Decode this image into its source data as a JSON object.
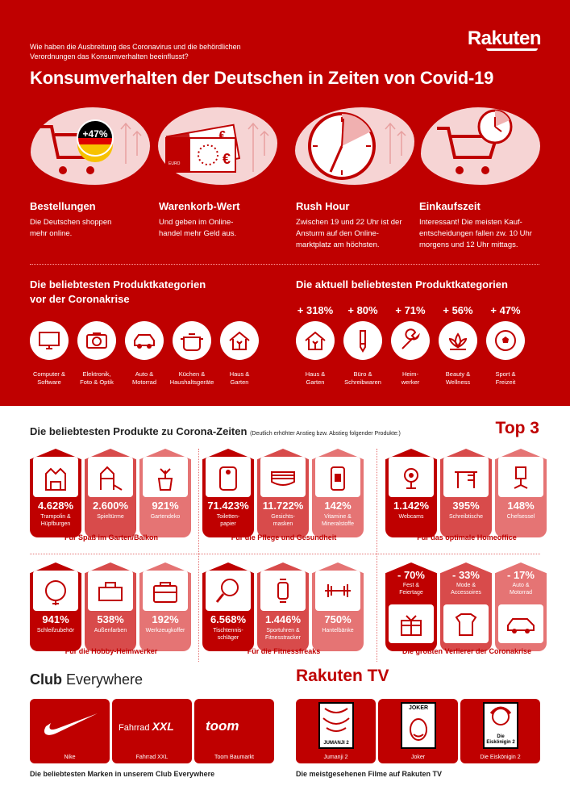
{
  "header": {
    "brand": "Rakuten",
    "question": "Wie haben die Ausbreitung des Coronavirus und die behördlichen Verordnungen das Konsumverhalten beeinflusst?",
    "title": "Konsumverhalten der Deutschen in Zeiten von Covid-19"
  },
  "stats": [
    {
      "badge": "+47%",
      "title": "Bestellungen",
      "text": "Die Deutschen shoppen mehr online."
    },
    {
      "title": "Warenkorb-Wert",
      "text": "Und geben im Online-handel mehr Geld aus.",
      "note_label": "EURO"
    },
    {
      "title": "Rush Hour",
      "text": "Zwischen 19 und 22 Uhr ist der Ansturm auf den Online-marktplatz am höchsten."
    },
    {
      "title": "Einkaufszeit",
      "text": "Interessant! Die meisten Kauf-entscheidungen fallen zw. 10 Uhr morgens und 12 Uhr mittags."
    }
  ],
  "before": {
    "title_1": "Die beliebtesten Produktkategorien",
    "title_2": "vor der Coronakrise",
    "items": [
      {
        "label_1": "Computer &",
        "label_2": "Software",
        "icon": "monitor-icon"
      },
      {
        "label_1": "Elektronik,",
        "label_2": "Foto & Optik",
        "icon": "camera-icon"
      },
      {
        "label_1": "Auto &",
        "label_2": "Motorrad",
        "icon": "car-icon"
      },
      {
        "label_1": "Küchen &",
        "label_2": "Haushaltsgeräte",
        "icon": "pot-icon"
      },
      {
        "label_1": "Haus &",
        "label_2": "Garten",
        "icon": "house-icon"
      }
    ]
  },
  "current": {
    "title": "Die aktuell beliebtesten Produktkategorien",
    "items": [
      {
        "pct": "+ 318%",
        "label_1": "Haus &",
        "label_2": "Garten",
        "icon": "house-icon"
      },
      {
        "pct": "+ 80%",
        "label_1": "Büro &",
        "label_2": "Schreibwaren",
        "icon": "pencil-icon"
      },
      {
        "pct": "+ 71%",
        "label_1": "Heim-",
        "label_2": "werker",
        "icon": "wrench-icon"
      },
      {
        "pct": "+ 56%",
        "label_1": "Beauty &",
        "label_2": "Wellness",
        "icon": "lotus-icon"
      },
      {
        "pct": "+ 47%",
        "label_1": "Sport &",
        "label_2": "Freizeit",
        "icon": "ball-icon"
      }
    ]
  },
  "products": {
    "title": "Die beliebtesten Produkte zu Corona-Zeiten",
    "subtitle": "(Deutlich erhöhter Anstieg bzw. Abstieg folgender Produkte:)",
    "top3": "Top 3",
    "groups": [
      {
        "name": "Für Spaß im Garten/Balkon",
        "items": [
          {
            "value": "4.628%",
            "label_1": "Trampolin &",
            "label_2": "Hüpfburgen"
          },
          {
            "value": "2.600%",
            "label_1": "Spieltürme",
            "label_2": ""
          },
          {
            "value": "921%",
            "label_1": "Gartendeko",
            "label_2": ""
          }
        ]
      },
      {
        "name": "Für die Pflege und Gesundheit",
        "items": [
          {
            "value": "71.423%",
            "label_1": "Toiletten-",
            "label_2": "papier"
          },
          {
            "value": "11.722%",
            "label_1": "Gesichts-",
            "label_2": "masken"
          },
          {
            "value": "142%",
            "label_1": "Vitamine &",
            "label_2": "Mineralstoffe"
          }
        ]
      },
      {
        "name": "Für das optimale Homeoffice",
        "items": [
          {
            "value": "1.142%",
            "label_1": "Webcams",
            "label_2": ""
          },
          {
            "value": "395%",
            "label_1": "Schreibtische",
            "label_2": ""
          },
          {
            "value": "148%",
            "label_1": "Chefsessel",
            "label_2": ""
          }
        ]
      },
      {
        "name": "Für die Hobby-Heimwerker",
        "items": [
          {
            "value": "941%",
            "label_1": "Schleifzubehör",
            "label_2": ""
          },
          {
            "value": "538%",
            "label_1": "Außenfarben",
            "label_2": ""
          },
          {
            "value": "192%",
            "label_1": "Werkzeugkoffer",
            "label_2": ""
          }
        ]
      },
      {
        "name": "Für die Fitnessfreaks",
        "items": [
          {
            "value": "6.568%",
            "label_1": "Tischtennis-",
            "label_2": "schläger"
          },
          {
            "value": "1.446%",
            "label_1": "Sportuhren &",
            "label_2": "Fitnesstracker"
          },
          {
            "value": "750%",
            "label_1": "Hantelbänke",
            "label_2": ""
          }
        ]
      },
      {
        "name": "Die größten Verlierer der Coronakrise",
        "items": [
          {
            "value": "- 70%",
            "label_1": "Fest &",
            "label_2": "Feiertage"
          },
          {
            "value": "- 33%",
            "label_1": "Mode &",
            "label_2": "Accessoires"
          },
          {
            "value": "- 17%",
            "label_1": "Auto &",
            "label_2": "Motorrad"
          }
        ]
      }
    ]
  },
  "club": {
    "title_bold": "Club",
    "title_rest": " Everywhere",
    "brands": [
      {
        "label": "Nike"
      },
      {
        "label": "Fahrrad XXL",
        "logo_1": "Fahrrad",
        "logo_2": "XXL"
      },
      {
        "label": "Toom Baumarkt",
        "logo": "toom"
      }
    ],
    "footer": "Die beliebtesten Marken in unserem Club Everywhere"
  },
  "tv": {
    "logo": "Rakuten TV",
    "films": [
      {
        "label": "Jumanji 2",
        "poster": "JUMANJI 2"
      },
      {
        "label": "Joker",
        "poster": "JOKER"
      },
      {
        "label": "Die Eiskönigin 2",
        "poster_1": "Die",
        "poster_2": "Eiskönigin 2"
      }
    ],
    "footer": "Die meistgesehenen Filme auf Rakuten TV"
  }
}
